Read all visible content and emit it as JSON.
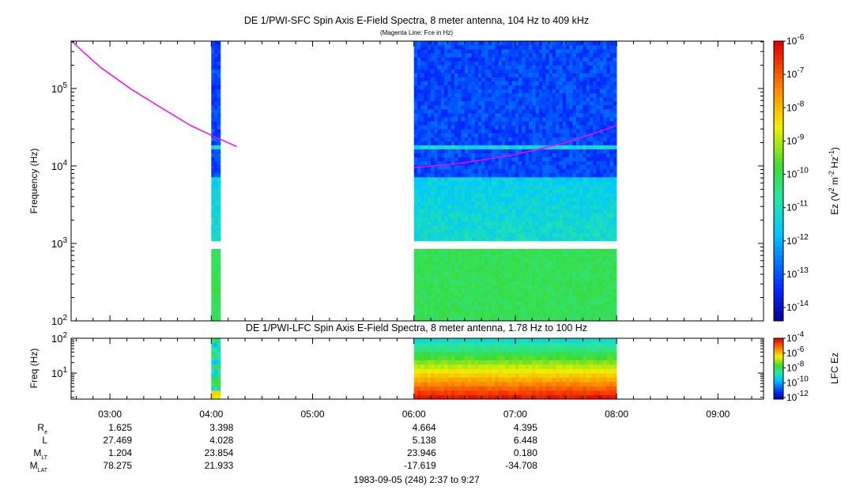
{
  "chart_data": [
    {
      "type": "heatmap",
      "title": "DE 1/PWI-SFC  Spin Axis E-Field Spectra, 8 meter antenna, 104 Hz to 409 kHz",
      "subtitle": "(Magenta Line: Fce in Hz)",
      "ylabel": "Frequency (Hz)",
      "yscale": "log",
      "ylim": [
        100,
        409000
      ],
      "yticks": [
        {
          "value": 100,
          "label": "10",
          "exp": "2"
        },
        {
          "value": 1000,
          "label": "10",
          "exp": "3"
        },
        {
          "value": 10000,
          "label": "10",
          "exp": "4"
        },
        {
          "value": 100000,
          "label": "10",
          "exp": "5"
        }
      ],
      "xlim_hours": [
        2.617,
        9.45
      ],
      "data_intervals_hours": [
        [
          4.0,
          4.09
        ],
        [
          6.0,
          8.0
        ]
      ],
      "gap_band_hz": [
        900,
        1050
      ],
      "fce_line": {
        "color": "#ff00ff",
        "segments": [
          {
            "t": [
              2.62,
              2.9,
              3.2,
              3.5,
              3.8,
              4.0,
              4.25
            ],
            "f": [
              409000,
              190000,
              100000,
              57000,
              33000,
              25000,
              17800
            ]
          },
          {
            "t": [
              6.0,
              6.5,
              7.0,
              7.5,
              8.0
            ],
            "f": [
              9500,
              11000,
              14000,
              20000,
              33000
            ]
          }
        ]
      },
      "colorbar": {
        "label": "Ez (V",
        "label_sup1": "2",
        "label_mid": " m",
        "label_sup2": "-2",
        "label_mid2": " Hz",
        "label_sup3": "-1",
        "label_end": ")",
        "min_exp": -14.4,
        "max_exp": -6,
        "ticks": [
          {
            "label": "10",
            "exp": "-6"
          },
          {
            "label": "10",
            "exp": "-7"
          },
          {
            "label": "10",
            "exp": "-8"
          },
          {
            "label": "10",
            "exp": "-9"
          },
          {
            "label": "10",
            "exp": "-10"
          },
          {
            "label": "10",
            "exp": "-11"
          },
          {
            "label": "10",
            "exp": "-12"
          },
          {
            "label": "10",
            "exp": "-13"
          },
          {
            "label": "10",
            "exp": "-14"
          }
        ]
      }
    },
    {
      "type": "heatmap",
      "title": "DE 1/PWI-LFC  Spin Axis E-Field Spectra, 8 meter antenna, 1.78 Hz to 100 Hz",
      "ylabel": "Freq (Hz)",
      "yscale": "log",
      "ylim": [
        1.78,
        100
      ],
      "yticks": [
        {
          "value": 10,
          "label": "10",
          "exp": "1"
        },
        {
          "value": 100,
          "label": "10",
          "exp": "2"
        }
      ],
      "data_intervals_hours": [
        [
          4.0,
          4.09
        ],
        [
          6.0,
          8.0
        ]
      ],
      "colorbar": {
        "label": "LFC Ez",
        "min_exp": -12.2,
        "max_exp": -4,
        "ticks": [
          {
            "label": "10",
            "exp": "-4"
          },
          {
            "label": "10",
            "exp": "-6"
          },
          {
            "label": "10",
            "exp": "-8"
          },
          {
            "label": "10",
            "exp": "-10"
          },
          {
            "label": "10",
            "exp": "-12"
          }
        ]
      }
    }
  ],
  "time_axis": {
    "ticks": [
      {
        "hour": 3,
        "label": "03:00"
      },
      {
        "hour": 4,
        "label": "04:00"
      },
      {
        "hour": 5,
        "label": "05:00"
      },
      {
        "hour": 6,
        "label": "06:00"
      },
      {
        "hour": 7,
        "label": "07:00"
      },
      {
        "hour": 8,
        "label": "08:00"
      },
      {
        "hour": 9,
        "label": "09:00"
      }
    ],
    "footer": "1983-09-05 (248) 2:37 to 9:27"
  },
  "ephemeris": {
    "rows": [
      {
        "label": "R",
        "sub": "e",
        "values": [
          "1.625",
          "3.398",
          "",
          "4.664",
          "4.395",
          "",
          ""
        ]
      },
      {
        "label": "L",
        "sub": "",
        "values": [
          "27.469",
          "4.028",
          "",
          "5.138",
          "6.448",
          "",
          ""
        ]
      },
      {
        "label": "M",
        "sub": "LT",
        "values": [
          "1.204",
          "23.854",
          "",
          "23.946",
          "0.180",
          "",
          ""
        ]
      },
      {
        "label": "M",
        "sub": "LAT",
        "values": [
          "78.275",
          "21.933",
          "",
          "-17.619",
          "-34.708",
          "",
          ""
        ]
      }
    ]
  }
}
